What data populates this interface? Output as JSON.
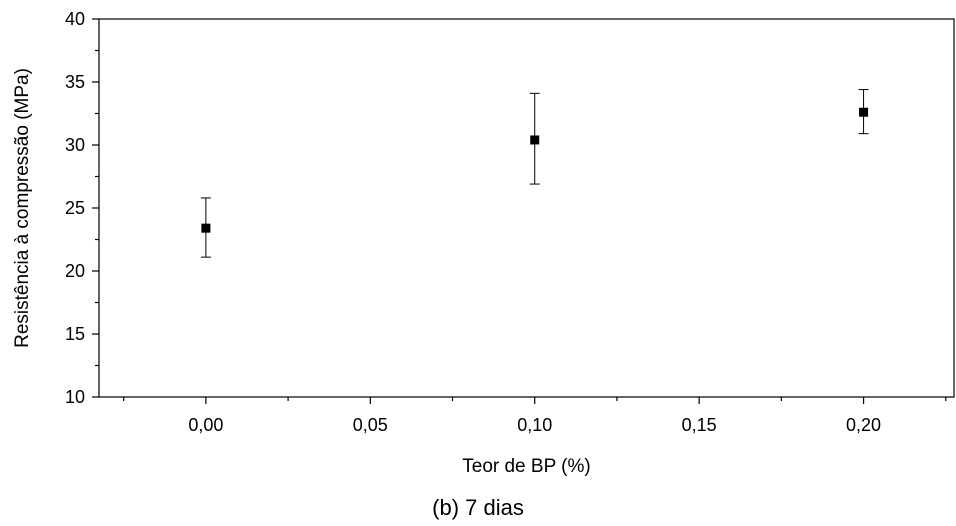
{
  "chart_data": {
    "type": "scatter",
    "xlabel": "Teor de BP (%)",
    "ylabel": "Resistência à compressão (MPa)",
    "xlim": [
      -0.0325,
      0.2275
    ],
    "ylim": [
      10,
      40
    ],
    "x_ticks": [
      0.0,
      0.05,
      0.1,
      0.15,
      0.2
    ],
    "x_tick_labels": [
      "0,00",
      "0,05",
      "0,10",
      "0,15",
      "0,20"
    ],
    "y_ticks": [
      10,
      15,
      20,
      25,
      30,
      35,
      40
    ],
    "y_tick_labels": [
      "10",
      "15",
      "20",
      "25",
      "30",
      "35",
      "40"
    ],
    "points": [
      {
        "x": 0.0,
        "y": 23.4,
        "err_low": 21.1,
        "err_high": 25.8
      },
      {
        "x": 0.1,
        "y": 30.4,
        "err_low": 26.9,
        "err_high": 34.1
      },
      {
        "x": 0.2,
        "y": 32.6,
        "err_low": 30.9,
        "err_high": 34.4
      }
    ],
    "marker": "square",
    "color": "#000000",
    "grid": false
  },
  "caption": "(b) 7 dias"
}
